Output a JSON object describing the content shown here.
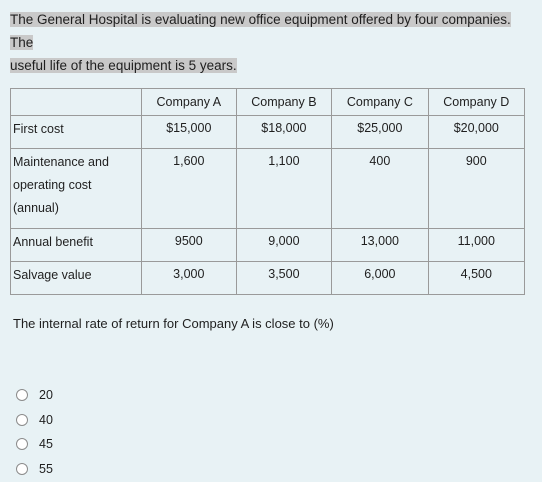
{
  "question": {
    "line1": "The General Hospital is evaluating new office equipment offered by four companies. The",
    "line2": "useful life of the equipment is 5 years."
  },
  "table": {
    "headers": [
      "Company A",
      "Company B",
      "Company C",
      "Company D"
    ],
    "rows": [
      {
        "label": "First cost",
        "values": [
          "$15,000",
          "$18,000",
          "$25,000",
          "$20,000"
        ]
      },
      {
        "label_lines": [
          "Maintenance and",
          "operating cost",
          "(annual)"
        ],
        "values": [
          "1,600",
          "1,100",
          "400",
          "900"
        ]
      },
      {
        "label": "Annual benefit",
        "values": [
          "9500",
          "9,000",
          "13,000",
          "11,000"
        ]
      },
      {
        "label": "Salvage value",
        "values": [
          "3,000",
          "3,500",
          "6,000",
          "4,500"
        ]
      }
    ]
  },
  "prompt": "The internal rate of return for Company A is close to (%)",
  "options": [
    "20",
    "40",
    "45",
    "55"
  ]
}
